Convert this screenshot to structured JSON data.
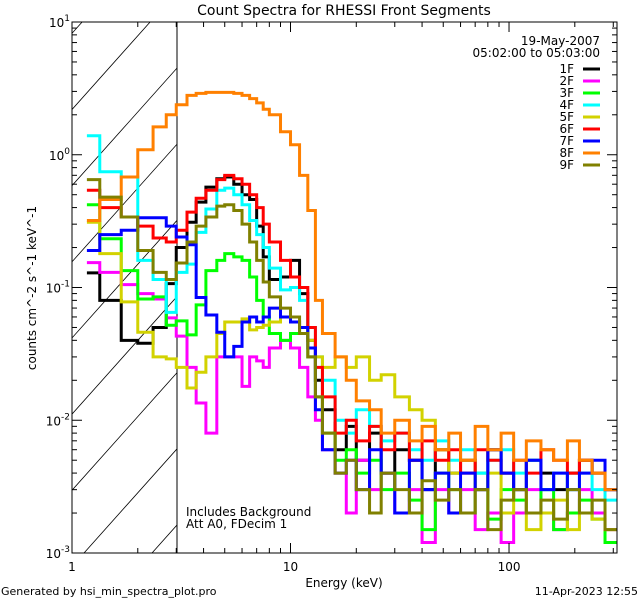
{
  "chart_data": {
    "type": "line",
    "title": "Count Spectra for RHESSI Front Segments",
    "xlabel": "Energy (keV)",
    "ylabel": "counts cm^-2 s^-1 keV^-1",
    "xscale": "log",
    "yscale": "log",
    "xlim": [
      1,
      312
    ],
    "ylim": [
      0.001,
      10
    ],
    "xtick_values": [
      1,
      10,
      100
    ],
    "xtick_labels": [
      "1",
      "10",
      "100"
    ],
    "ytick_values": [
      10,
      1,
      0.1,
      0.01,
      0.001
    ],
    "ytick_base": "10",
    "ytick_exponents": [
      "1",
      "0",
      "-1",
      "-2",
      "-3"
    ],
    "hatched_region_keV": [
      1,
      3
    ],
    "date": "19-May-2007",
    "time_range": "05:02:00 to 05:03:00",
    "annotations": [
      "Includes Background",
      "Att A0, FDecim 1"
    ],
    "legend_placement": "top-right",
    "energy_keV": [
      1.17,
      1.34,
      1.68,
      2.0,
      2.35,
      2.7,
      3.0,
      3.36,
      3.7,
      4.1,
      4.6,
      5,
      5.5,
      6,
      6.5,
      7,
      7.5,
      8,
      9,
      10,
      11,
      12,
      13,
      14,
      16,
      18,
      20,
      23,
      26,
      30,
      35,
      40,
      46,
      53,
      60,
      70,
      80,
      92,
      105,
      120,
      140,
      160,
      185,
      210,
      240,
      275
    ],
    "energy_max_keV": 312,
    "series": [
      {
        "name": "1F",
        "color": "#000000",
        "counts": [
          0.129,
          0.08,
          0.04,
          0.038,
          0.05,
          0.107,
          0.2,
          0.31,
          0.44,
          0.57,
          0.66,
          0.68,
          0.6,
          0.5,
          0.46,
          0.29,
          0.17,
          0.115,
          0.12,
          0.16,
          0.09,
          0.04,
          0.02,
          0.012,
          0.006,
          0.009,
          0.005,
          0.008,
          0.004,
          0.006,
          0.005,
          0.003,
          0.006,
          0.004,
          0.005,
          0.003,
          0.006,
          0.004,
          0.003,
          0.005,
          0.004,
          0.003,
          0.004,
          0.005,
          0.004,
          0.003
        ]
      },
      {
        "name": "2F",
        "color": "#ff00ff",
        "counts": [
          0.154,
          0.13,
          0.105,
          0.09,
          0.082,
          0.059,
          0.043,
          0.025,
          0.0135,
          0.008,
          0.03,
          0.03,
          0.03,
          0.018,
          0.03,
          0.028,
          0.025,
          0.035,
          0.04,
          0.035,
          0.025,
          0.015,
          0.01,
          0.006,
          0.004,
          0.002,
          0.005,
          0.003,
          0.004,
          0.002,
          0.003,
          0.0012,
          0.003,
          0.002,
          0.003,
          0.0015,
          0.002,
          0.0012,
          0.002,
          0.003,
          0.002,
          0.0015,
          0.002,
          0.003,
          0.002,
          0.0015
        ]
      },
      {
        "name": "3F",
        "color": "#00ff00",
        "counts": [
          0.42,
          0.233,
          0.134,
          0.082,
          0.085,
          0.052,
          0.056,
          0.044,
          0.074,
          0.134,
          0.16,
          0.18,
          0.17,
          0.16,
          0.12,
          0.08,
          0.06,
          0.045,
          0.04,
          0.045,
          0.05,
          0.03,
          0.015,
          0.008,
          0.005,
          0.006,
          0.004,
          0.005,
          0.003,
          0.004,
          0.0025,
          0.0015,
          0.004,
          0.003,
          0.002,
          0.004,
          0.0018,
          0.003,
          0.0025,
          0.002,
          0.003,
          0.0015,
          0.002,
          0.0025,
          0.0018,
          0.0012
        ]
      },
      {
        "name": "4F",
        "color": "#00ffff",
        "counts": [
          1.39,
          0.745,
          0.68,
          0.16,
          0.115,
          0.065,
          0.13,
          0.15,
          0.26,
          0.39,
          0.54,
          0.56,
          0.5,
          0.42,
          0.32,
          0.25,
          0.2,
          0.14,
          0.096,
          0.1,
          0.08,
          0.05,
          0.03,
          0.02,
          0.01,
          0.008,
          0.012,
          0.009,
          0.007,
          0.008,
          0.006,
          0.005,
          0.007,
          0.005,
          0.006,
          0.004,
          0.005,
          0.006,
          0.004,
          0.005,
          0.003,
          0.004,
          0.003,
          0.004,
          0.003,
          0.0025
        ]
      },
      {
        "name": "5F",
        "color": "#d2d200",
        "counts": [
          0.31,
          0.18,
          0.078,
          0.046,
          0.03,
          0.029,
          0.025,
          0.0175,
          0.023,
          0.03,
          0.045,
          0.055,
          0.055,
          0.058,
          0.048,
          0.05,
          0.052,
          0.055,
          0.06,
          0.055,
          0.05,
          0.04,
          0.03,
          0.025,
          0.03,
          0.025,
          0.03,
          0.02,
          0.022,
          0.015,
          0.012,
          0.01,
          0.006,
          0.004,
          0.005,
          0.003,
          0.004,
          0.002,
          0.003,
          0.0015,
          0.002,
          0.0025,
          0.0015,
          0.002,
          0.0018,
          0.0015
        ]
      },
      {
        "name": "6F",
        "color": "#ff0000",
        "counts": [
          0.54,
          0.4,
          0.34,
          0.29,
          0.236,
          0.22,
          0.27,
          0.37,
          0.47,
          0.54,
          0.65,
          0.7,
          0.66,
          0.6,
          0.5,
          0.4,
          0.3,
          0.22,
          0.16,
          0.12,
          0.1,
          0.05,
          0.025,
          0.015,
          0.008,
          0.01,
          0.007,
          0.009,
          0.006,
          0.008,
          0.005,
          0.007,
          0.005,
          0.006,
          0.004,
          0.006,
          0.005,
          0.004,
          0.005,
          0.004,
          0.006,
          0.005,
          0.004,
          0.005,
          0.004,
          0.003
        ]
      },
      {
        "name": "7F",
        "color": "#0000ff",
        "counts": [
          0.19,
          0.25,
          0.27,
          0.335,
          0.335,
          0.29,
          0.24,
          0.21,
          0.084,
          0.062,
          0.046,
          0.03,
          0.036,
          0.055,
          0.06,
          0.055,
          0.06,
          0.07,
          0.06,
          0.055,
          0.05,
          0.035,
          0.012,
          0.006,
          0.004,
          0.005,
          0.003,
          0.006,
          0.004,
          0.002,
          0.005,
          0.003,
          0.004,
          0.002,
          0.004,
          0.003,
          0.006,
          0.004,
          0.003,
          0.005,
          0.003,
          0.004,
          0.003,
          0.004,
          0.005,
          0.003
        ]
      },
      {
        "name": "8F",
        "color": "#ff8000",
        "counts": [
          0.32,
          0.46,
          0.68,
          1.09,
          1.62,
          2.0,
          2.38,
          2.8,
          2.9,
          2.95,
          2.95,
          2.95,
          2.9,
          2.8,
          2.65,
          2.46,
          2.2,
          2.0,
          1.49,
          1.19,
          0.7,
          0.38,
          0.08,
          0.045,
          0.03,
          0.02,
          0.014,
          0.012,
          0.008,
          0.01,
          0.007,
          0.009,
          0.006,
          0.008,
          0.005,
          0.009,
          0.006,
          0.008,
          0.005,
          0.007,
          0.006,
          0.005,
          0.007,
          0.005,
          0.004,
          0.003
        ]
      },
      {
        "name": "9F",
        "color": "#808000",
        "counts": [
          0.65,
          0.48,
          0.34,
          0.19,
          0.13,
          0.115,
          0.153,
          0.22,
          0.29,
          0.34,
          0.41,
          0.42,
          0.38,
          0.3,
          0.22,
          0.16,
          0.11,
          0.085,
          0.07,
          0.06,
          0.045,
          0.03,
          0.015,
          0.008,
          0.004,
          0.005,
          0.003,
          0.002,
          0.004,
          0.003,
          0.002,
          0.0035,
          0.0025,
          0.003,
          0.002,
          0.003,
          0.0015,
          0.0025,
          0.003,
          0.002,
          0.0025,
          0.0018,
          0.003,
          0.002,
          0.0025,
          0.0015
        ]
      }
    ]
  },
  "footer": {
    "generated_by": "Generated by hsi_min_spectra_plot.pro",
    "timestamp": "11-Apr-2023 12:55"
  }
}
